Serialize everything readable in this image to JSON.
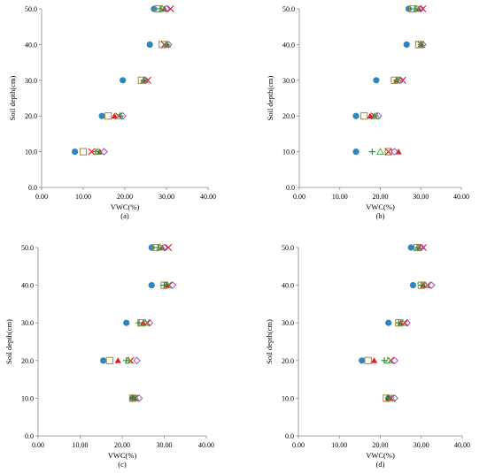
{
  "chart_data": [
    {
      "type": "scatter",
      "panel_label": "(a)",
      "xlabel": "VWC(%)",
      "ylabel": "Soil depth(cm)",
      "xlim": [
        0,
        40
      ],
      "ylim": [
        0,
        50
      ],
      "xticks": [
        "0.00",
        "10.00",
        "20.00",
        "30.00",
        "40.00"
      ],
      "yticks": [
        "0.0",
        "10.0",
        "20.0",
        "30.0",
        "40.0",
        "50.0"
      ],
      "grid": false,
      "series": [
        {
          "marker": "circle-filled",
          "color": "#2E86C1",
          "points": [
            [
              8.0,
              10
            ],
            [
              14.5,
              20
            ],
            [
              19.5,
              30
            ],
            [
              26.0,
              40
            ],
            [
              27.0,
              50
            ]
          ]
        },
        {
          "marker": "square-open",
          "color": "#A08A3C",
          "points": [
            [
              10.0,
              10
            ],
            [
              16.0,
              20
            ],
            [
              24.0,
              30
            ],
            [
              29.0,
              40
            ],
            [
              28.0,
              50
            ]
          ]
        },
        {
          "marker": "triangle-filled",
          "color": "#E31A1C",
          "points": [
            [
              14.0,
              10
            ],
            [
              17.5,
              20
            ],
            [
              24.5,
              30
            ],
            [
              30.0,
              40
            ],
            [
              29.5,
              50
            ]
          ]
        },
        {
          "marker": "x",
          "color": "#E31A1C",
          "points": [
            [
              12.0,
              10
            ],
            [
              18.5,
              20
            ],
            [
              25.5,
              30
            ],
            [
              29.5,
              40
            ],
            [
              31.0,
              50
            ]
          ]
        },
        {
          "marker": "plus",
          "color": "#2E7D32",
          "points": [
            [
              13.0,
              10
            ],
            [
              19.0,
              20
            ],
            [
              24.5,
              30
            ],
            [
              30.0,
              40
            ],
            [
              28.5,
              50
            ]
          ]
        },
        {
          "marker": "diamond-open",
          "color": "#A050C0",
          "points": [
            [
              15.0,
              10
            ],
            [
              19.5,
              20
            ],
            [
              25.0,
              30
            ],
            [
              30.5,
              40
            ],
            [
              30.0,
              50
            ]
          ]
        },
        {
          "marker": "triangle-open",
          "color": "#4CAF50",
          "points": [
            [
              13.5,
              10
            ],
            [
              18.8,
              20
            ],
            [
              24.8,
              30
            ],
            [
              30.2,
              40
            ],
            [
              29.0,
              50
            ]
          ]
        }
      ]
    },
    {
      "type": "scatter",
      "panel_label": "(b)",
      "xlabel": "VWC(%)",
      "ylabel": "Soil depth(cm)",
      "xlim": [
        0,
        40
      ],
      "ylim": [
        0,
        50
      ],
      "xticks": [
        "0.00",
        "10.00",
        "20.00",
        "30.00",
        "40.00"
      ],
      "yticks": [
        "0.0",
        "10.0",
        "20.0",
        "30.0",
        "40.0",
        "50.0"
      ],
      "grid": false,
      "series": [
        {
          "marker": "circle-filled",
          "color": "#2E86C1",
          "points": [
            [
              14.0,
              10
            ],
            [
              14.0,
              20
            ],
            [
              19.0,
              30
            ],
            [
              26.5,
              40
            ],
            [
              27.0,
              50
            ]
          ]
        },
        {
          "marker": "square-open",
          "color": "#A08A3C",
          "points": [
            [
              22.0,
              10
            ],
            [
              16.0,
              20
            ],
            [
              23.5,
              30
            ],
            [
              29.5,
              40
            ],
            [
              28.0,
              50
            ]
          ]
        },
        {
          "marker": "triangle-filled",
          "color": "#E31A1C",
          "points": [
            [
              24.5,
              10
            ],
            [
              17.5,
              20
            ],
            [
              24.0,
              30
            ],
            [
              30.0,
              40
            ],
            [
              29.5,
              50
            ]
          ]
        },
        {
          "marker": "x",
          "color": "#E31A1C",
          "points": [
            [
              22.0,
              10
            ],
            [
              18.5,
              20
            ],
            [
              25.5,
              30
            ],
            [
              30.0,
              40
            ],
            [
              30.5,
              50
            ]
          ]
        },
        {
          "marker": "plus",
          "color": "#2E7D32",
          "points": [
            [
              18.0,
              10
            ],
            [
              18.5,
              20
            ],
            [
              24.0,
              30
            ],
            [
              30.0,
              40
            ],
            [
              28.5,
              50
            ]
          ]
        },
        {
          "marker": "diamond-open",
          "color": "#A050C0",
          "points": [
            [
              23.5,
              10
            ],
            [
              19.5,
              20
            ],
            [
              25.0,
              30
            ],
            [
              30.5,
              40
            ],
            [
              30.0,
              50
            ]
          ]
        },
        {
          "marker": "triangle-open",
          "color": "#4CAF50",
          "points": [
            [
              20.0,
              10
            ],
            [
              19.0,
              20
            ],
            [
              24.5,
              30
            ],
            [
              30.2,
              40
            ],
            [
              29.0,
              50
            ]
          ]
        }
      ]
    },
    {
      "type": "scatter",
      "panel_label": "(c)",
      "xlabel": "VWC(%)",
      "ylabel": "Soil depth(cm)",
      "xlim": [
        0,
        40
      ],
      "ylim": [
        0,
        50
      ],
      "xticks": [
        "0.00",
        "10.00",
        "20.00",
        "30.00",
        "40.00"
      ],
      "yticks": [
        "0.0",
        "10.0",
        "20.0",
        "30.0",
        "40.0",
        "50.0"
      ],
      "grid": false,
      "series": [
        {
          "marker": "circle-filled",
          "color": "#2E86C1",
          "points": [
            [
              22.5,
              10
            ],
            [
              15.5,
              20
            ],
            [
              21.0,
              30
            ],
            [
              27.0,
              40
            ],
            [
              27.0,
              50
            ]
          ]
        },
        {
          "marker": "square-open",
          "color": "#A08A3C",
          "points": [
            [
              22.5,
              10
            ],
            [
              17.0,
              20
            ],
            [
              24.5,
              30
            ],
            [
              30.0,
              40
            ],
            [
              28.0,
              50
            ]
          ]
        },
        {
          "marker": "triangle-filled",
          "color": "#E31A1C",
          "points": [
            [
              23.0,
              10
            ],
            [
              19.0,
              20
            ],
            [
              25.0,
              30
            ],
            [
              30.5,
              40
            ],
            [
              29.5,
              50
            ]
          ]
        },
        {
          "marker": "x",
          "color": "#E31A1C",
          "points": [
            [
              23.0,
              10
            ],
            [
              22.0,
              20
            ],
            [
              26.0,
              30
            ],
            [
              31.0,
              40
            ],
            [
              31.0,
              50
            ]
          ]
        },
        {
          "marker": "plus",
          "color": "#2E7D32",
          "points": [
            [
              22.5,
              10
            ],
            [
              21.0,
              20
            ],
            [
              24.0,
              30
            ],
            [
              30.0,
              40
            ],
            [
              28.5,
              50
            ]
          ]
        },
        {
          "marker": "diamond-open",
          "color": "#A050C0",
          "points": [
            [
              24.0,
              10
            ],
            [
              23.5,
              20
            ],
            [
              26.5,
              30
            ],
            [
              32.0,
              40
            ],
            [
              30.0,
              50
            ]
          ]
        },
        {
          "marker": "triangle-open",
          "color": "#4CAF50",
          "points": [
            [
              23.2,
              10
            ],
            [
              21.5,
              20
            ],
            [
              25.5,
              30
            ],
            [
              30.8,
              40
            ],
            [
              29.0,
              50
            ]
          ]
        }
      ]
    },
    {
      "type": "scatter",
      "panel_label": "(d)",
      "xlabel": "VWC(%)",
      "ylabel": "Soil depth(cm)",
      "xlim": [
        0,
        40
      ],
      "ylim": [
        0,
        50
      ],
      "xticks": [
        "0.00",
        "10.00",
        "20.00",
        "30.00",
        "40.00"
      ],
      "yticks": [
        "0.0",
        "10.0",
        "20.0",
        "30.0",
        "40.0",
        "50.0"
      ],
      "grid": false,
      "series": [
        {
          "marker": "circle-filled",
          "color": "#2E86C1",
          "points": [
            [
              22.0,
              10
            ],
            [
              15.5,
              20
            ],
            [
              22.0,
              30
            ],
            [
              28.0,
              40
            ],
            [
              27.5,
              50
            ]
          ]
        },
        {
          "marker": "square-open",
          "color": "#A08A3C",
          "points": [
            [
              21.5,
              10
            ],
            [
              17.0,
              20
            ],
            [
              24.5,
              30
            ],
            [
              30.0,
              40
            ],
            [
              29.0,
              50
            ]
          ]
        },
        {
          "marker": "triangle-filled",
          "color": "#E31A1C",
          "points": [
            [
              22.0,
              10
            ],
            [
              18.5,
              20
            ],
            [
              25.0,
              30
            ],
            [
              30.5,
              40
            ],
            [
              29.5,
              50
            ]
          ]
        },
        {
          "marker": "x",
          "color": "#E31A1C",
          "points": [
            [
              22.5,
              10
            ],
            [
              22.5,
              20
            ],
            [
              26.0,
              30
            ],
            [
              31.5,
              40
            ],
            [
              30.5,
              50
            ]
          ]
        },
        {
          "marker": "plus",
          "color": "#2E7D32",
          "points": [
            [
              22.0,
              10
            ],
            [
              21.0,
              20
            ],
            [
              24.5,
              30
            ],
            [
              30.0,
              40
            ],
            [
              29.0,
              50
            ]
          ]
        },
        {
          "marker": "diamond-open",
          "color": "#A050C0",
          "points": [
            [
              23.5,
              10
            ],
            [
              23.5,
              20
            ],
            [
              26.5,
              30
            ],
            [
              32.5,
              40
            ],
            [
              30.0,
              50
            ]
          ]
        },
        {
          "marker": "triangle-open",
          "color": "#4CAF50",
          "points": [
            [
              22.8,
              10
            ],
            [
              22.0,
              20
            ],
            [
              25.5,
              30
            ],
            [
              31.0,
              40
            ],
            [
              29.2,
              50
            ]
          ]
        }
      ]
    }
  ]
}
